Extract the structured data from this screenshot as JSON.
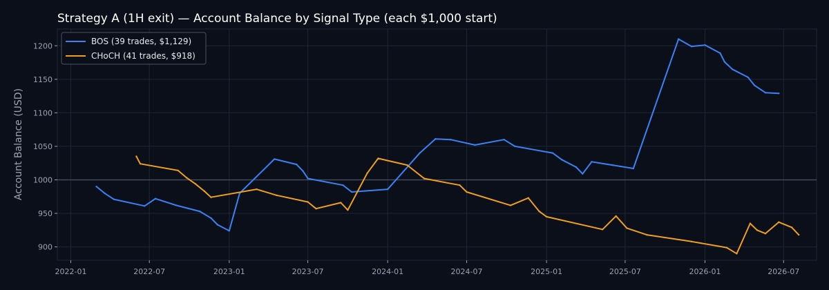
{
  "chart_data": {
    "type": "line",
    "title": "Strategy A (1H exit) — Account Balance by Signal Type (each $1,000 start)",
    "xlabel": "",
    "ylabel": "Account Balance (USD)",
    "ylim": [
      880,
      1225
    ],
    "xlim": [
      "2021-12-01",
      "2026-09-15"
    ],
    "y_ticks": [
      900,
      950,
      1000,
      1050,
      1100,
      1150,
      1200
    ],
    "x_ticks": [
      "2022-01",
      "2022-07",
      "2023-01",
      "2023-07",
      "2024-01",
      "2024-07",
      "2025-01",
      "2025-07",
      "2026-01",
      "2026-07"
    ],
    "reference_line": 1000,
    "grid": true,
    "legend_position": "top-left",
    "colors": {
      "background": "#0b0f19",
      "grid": "#1f2636",
      "reference": "#4a5263",
      "axis_text": "#9aa3b2"
    },
    "series": [
      {
        "name": "BOS (39 trades, $1,129)",
        "color": "#3b82f6",
        "points": [
          [
            "2022-03-01",
            990
          ],
          [
            "2022-03-20",
            980
          ],
          [
            "2022-04-10",
            971
          ],
          [
            "2022-06-20",
            961
          ],
          [
            "2022-07-15",
            972
          ],
          [
            "2022-09-01",
            962
          ],
          [
            "2022-10-25",
            953
          ],
          [
            "2022-11-20",
            943
          ],
          [
            "2022-12-05",
            933
          ],
          [
            "2023-01-01",
            924
          ],
          [
            "2023-01-25",
            980
          ],
          [
            "2023-04-15",
            1031
          ],
          [
            "2023-06-05",
            1023
          ],
          [
            "2023-06-20",
            1013
          ],
          [
            "2023-07-01",
            1002
          ],
          [
            "2023-09-20",
            992
          ],
          [
            "2023-10-10",
            982
          ],
          [
            "2024-01-01",
            986
          ],
          [
            "2024-03-15",
            1040
          ],
          [
            "2024-04-20",
            1061
          ],
          [
            "2024-05-25",
            1060
          ],
          [
            "2024-07-20",
            1052
          ],
          [
            "2024-09-25",
            1060
          ],
          [
            "2024-10-20",
            1050
          ],
          [
            "2025-01-15",
            1040
          ],
          [
            "2025-02-05",
            1030
          ],
          [
            "2025-03-10",
            1019
          ],
          [
            "2025-03-25",
            1009
          ],
          [
            "2025-04-15",
            1027
          ],
          [
            "2025-07-20",
            1017
          ],
          [
            "2025-11-01",
            1210
          ],
          [
            "2025-12-01",
            1199
          ],
          [
            "2026-01-01",
            1201
          ],
          [
            "2026-02-05",
            1189
          ],
          [
            "2026-02-15",
            1176
          ],
          [
            "2026-03-05",
            1165
          ],
          [
            "2026-04-10",
            1153
          ],
          [
            "2026-04-25",
            1141
          ],
          [
            "2026-05-20",
            1130
          ],
          [
            "2026-06-20",
            1129
          ]
        ]
      },
      {
        "name": "CHoCH (41 trades, $918)",
        "color": "#f0a020",
        "points": [
          [
            "2022-06-01",
            1035
          ],
          [
            "2022-06-10",
            1024
          ],
          [
            "2022-09-05",
            1014
          ],
          [
            "2022-09-25",
            1003
          ],
          [
            "2022-10-15",
            994
          ],
          [
            "2022-11-05",
            983
          ],
          [
            "2022-11-20",
            974
          ],
          [
            "2023-03-05",
            986
          ],
          [
            "2023-04-20",
            977
          ],
          [
            "2023-07-01",
            967
          ],
          [
            "2023-07-20",
            957
          ],
          [
            "2023-09-15",
            966
          ],
          [
            "2023-10-01",
            955
          ],
          [
            "2023-11-15",
            1010
          ],
          [
            "2023-12-10",
            1032
          ],
          [
            "2024-02-15",
            1022
          ],
          [
            "2024-03-25",
            1002
          ],
          [
            "2024-06-15",
            992
          ],
          [
            "2024-07-01",
            982
          ],
          [
            "2024-10-10",
            962
          ],
          [
            "2024-11-20",
            973
          ],
          [
            "2024-12-15",
            953
          ],
          [
            "2025-01-01",
            945
          ],
          [
            "2025-05-10",
            926
          ],
          [
            "2025-06-10",
            946
          ],
          [
            "2025-07-05",
            928
          ],
          [
            "2025-08-20",
            918
          ],
          [
            "2025-12-01",
            908
          ],
          [
            "2026-02-20",
            899
          ],
          [
            "2026-03-15",
            890
          ],
          [
            "2026-04-15",
            935
          ],
          [
            "2026-05-01",
            925
          ],
          [
            "2026-05-20",
            920
          ],
          [
            "2026-06-20",
            937
          ],
          [
            "2026-07-20",
            929
          ],
          [
            "2026-08-05",
            918
          ]
        ]
      }
    ]
  }
}
